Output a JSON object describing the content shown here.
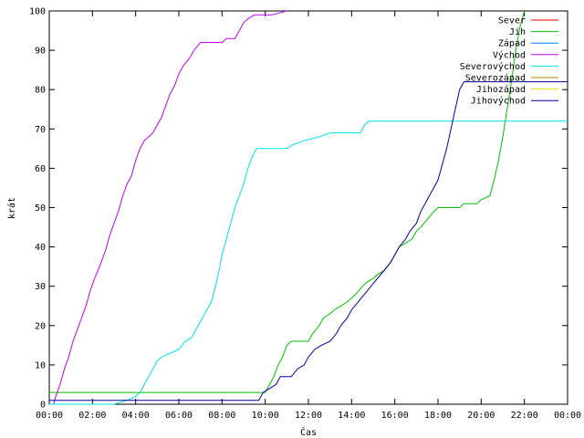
{
  "chart_data": {
    "type": "line",
    "title": "",
    "xlabel": "Čas",
    "ylabel": "krát",
    "xlim": [
      0,
      24
    ],
    "ylim": [
      0,
      100
    ],
    "x_unit": "hours",
    "x_ticks": [
      {
        "value": 0,
        "label": "00:00"
      },
      {
        "value": 2,
        "label": "02:00"
      },
      {
        "value": 4,
        "label": "04:00"
      },
      {
        "value": 6,
        "label": "06:00"
      },
      {
        "value": 8,
        "label": "08:00"
      },
      {
        "value": 10,
        "label": "10:00"
      },
      {
        "value": 12,
        "label": "12:00"
      },
      {
        "value": 14,
        "label": "14:00"
      },
      {
        "value": 16,
        "label": "16:00"
      },
      {
        "value": 18,
        "label": "18:00"
      },
      {
        "value": 20,
        "label": "20:00"
      },
      {
        "value": 22,
        "label": "22:00"
      },
      {
        "value": 24,
        "label": "00:00"
      }
    ],
    "y_ticks": [
      0,
      10,
      20,
      30,
      40,
      50,
      60,
      70,
      80,
      90,
      100
    ],
    "grid": false,
    "legend_position": "top-right",
    "series": [
      {
        "name": "Sever",
        "color": "#ff0000",
        "points": []
      },
      {
        "name": "Jih",
        "color": "#00c000",
        "points": [
          [
            0,
            3
          ],
          [
            10,
            3
          ],
          [
            10.2,
            5
          ],
          [
            10.4,
            7
          ],
          [
            10.6,
            10
          ],
          [
            10.8,
            12
          ],
          [
            11,
            15
          ],
          [
            11.2,
            16
          ],
          [
            12.0,
            16
          ],
          [
            12.2,
            18
          ],
          [
            12.5,
            20
          ],
          [
            12.7,
            22
          ],
          [
            13,
            23
          ],
          [
            13.2,
            24
          ],
          [
            13.5,
            25
          ],
          [
            13.8,
            26
          ],
          [
            14,
            27
          ],
          [
            14.2,
            28
          ],
          [
            14.5,
            30
          ],
          [
            14.7,
            31
          ],
          [
            15,
            32
          ],
          [
            15.2,
            33
          ],
          [
            15.5,
            34
          ],
          [
            15.8,
            36
          ],
          [
            16,
            38
          ],
          [
            16.2,
            40
          ],
          [
            16.5,
            41
          ],
          [
            16.8,
            42
          ],
          [
            17,
            44
          ],
          [
            17.2,
            45
          ],
          [
            17.5,
            47
          ],
          [
            17.8,
            49
          ],
          [
            18,
            50
          ],
          [
            19.0,
            50
          ],
          [
            19.2,
            51
          ],
          [
            19.8,
            51
          ],
          [
            20,
            52
          ],
          [
            20.4,
            53
          ],
          [
            20.6,
            57
          ],
          [
            20.8,
            62
          ],
          [
            21,
            68
          ],
          [
            21.2,
            75
          ],
          [
            21.4,
            82
          ],
          [
            21.6,
            90
          ],
          [
            21.8,
            96
          ],
          [
            22,
            100
          ]
        ]
      },
      {
        "name": "Západ",
        "color": "#0080ff",
        "points": []
      },
      {
        "name": "Východ",
        "color": "#c000ff",
        "points": [
          [
            0.2,
            0
          ],
          [
            0.3,
            2
          ],
          [
            0.5,
            5
          ],
          [
            0.7,
            9
          ],
          [
            0.9,
            12
          ],
          [
            1.1,
            16
          ],
          [
            1.3,
            19
          ],
          [
            1.5,
            22
          ],
          [
            1.7,
            25
          ],
          [
            1.9,
            29
          ],
          [
            2.1,
            32
          ],
          [
            2.4,
            36
          ],
          [
            2.6,
            39
          ],
          [
            2.8,
            43
          ],
          [
            3.0,
            46
          ],
          [
            3.2,
            49
          ],
          [
            3.4,
            53
          ],
          [
            3.6,
            56
          ],
          [
            3.8,
            58
          ],
          [
            4.0,
            62
          ],
          [
            4.2,
            65
          ],
          [
            4.4,
            67
          ],
          [
            4.6,
            68
          ],
          [
            4.8,
            69
          ],
          [
            5.0,
            71
          ],
          [
            5.2,
            73
          ],
          [
            5.4,
            76
          ],
          [
            5.6,
            79
          ],
          [
            5.8,
            81
          ],
          [
            6.0,
            84
          ],
          [
            6.2,
            86
          ],
          [
            6.5,
            88
          ],
          [
            6.7,
            90
          ],
          [
            7.0,
            92
          ],
          [
            8.0,
            92
          ],
          [
            8.2,
            93
          ],
          [
            8.6,
            93
          ],
          [
            8.8,
            95
          ],
          [
            9.0,
            97
          ],
          [
            9.2,
            98
          ],
          [
            9.5,
            99
          ],
          [
            10.0,
            99
          ],
          [
            10.3,
            99
          ],
          [
            11.0,
            100
          ]
        ]
      },
      {
        "name": "Severovýchod",
        "color": "#00e0e0",
        "points": [
          [
            0,
            0
          ],
          [
            3.0,
            0
          ],
          [
            3.6,
            1
          ],
          [
            4.0,
            2
          ],
          [
            4.2,
            3
          ],
          [
            4.4,
            5
          ],
          [
            4.6,
            7
          ],
          [
            4.8,
            9
          ],
          [
            5.0,
            11
          ],
          [
            5.2,
            12
          ],
          [
            5.6,
            13
          ],
          [
            6.0,
            14
          ],
          [
            6.3,
            16
          ],
          [
            6.6,
            17
          ],
          [
            6.8,
            19
          ],
          [
            7.0,
            21
          ],
          [
            7.2,
            23
          ],
          [
            7.5,
            26
          ],
          [
            7.7,
            30
          ],
          [
            7.9,
            35
          ],
          [
            8.0,
            38
          ],
          [
            8.2,
            42
          ],
          [
            8.4,
            46
          ],
          [
            8.6,
            50
          ],
          [
            8.8,
            53
          ],
          [
            9.0,
            56
          ],
          [
            9.2,
            60
          ],
          [
            9.4,
            63
          ],
          [
            9.6,
            65
          ],
          [
            10.0,
            65
          ],
          [
            11.0,
            65
          ],
          [
            11.3,
            66
          ],
          [
            11.8,
            67
          ],
          [
            12.5,
            68
          ],
          [
            13.0,
            69
          ],
          [
            14.4,
            69
          ],
          [
            14.6,
            71
          ],
          [
            14.8,
            72
          ],
          [
            24.0,
            72
          ]
        ]
      },
      {
        "name": "Severozápad",
        "color": "#c08000",
        "points": []
      },
      {
        "name": "Jihozápad",
        "color": "#f0e000",
        "points": []
      },
      {
        "name": "Jihovýchod",
        "color": "#0000a0",
        "points": [
          [
            0,
            1
          ],
          [
            9.7,
            1
          ],
          [
            9.9,
            3
          ],
          [
            10.2,
            4
          ],
          [
            10.5,
            5
          ],
          [
            10.7,
            7
          ],
          [
            11.2,
            7
          ],
          [
            11.5,
            9
          ],
          [
            11.8,
            10
          ],
          [
            12.0,
            12
          ],
          [
            12.3,
            14
          ],
          [
            12.6,
            15
          ],
          [
            13.0,
            16
          ],
          [
            13.3,
            18
          ],
          [
            13.5,
            20
          ],
          [
            13.8,
            22
          ],
          [
            14.0,
            24
          ],
          [
            14.3,
            26
          ],
          [
            14.6,
            28
          ],
          [
            14.9,
            30
          ],
          [
            15.2,
            32
          ],
          [
            15.5,
            34
          ],
          [
            15.8,
            36
          ],
          [
            16.0,
            38
          ],
          [
            16.2,
            40
          ],
          [
            16.5,
            42
          ],
          [
            16.7,
            44
          ],
          [
            17.0,
            46
          ],
          [
            17.2,
            49
          ],
          [
            17.4,
            51
          ],
          [
            17.7,
            54
          ],
          [
            18.0,
            57
          ],
          [
            18.2,
            61
          ],
          [
            18.4,
            65
          ],
          [
            18.6,
            70
          ],
          [
            18.8,
            75
          ],
          [
            19.0,
            80
          ],
          [
            19.2,
            82
          ],
          [
            24.0,
            82
          ]
        ]
      }
    ]
  }
}
